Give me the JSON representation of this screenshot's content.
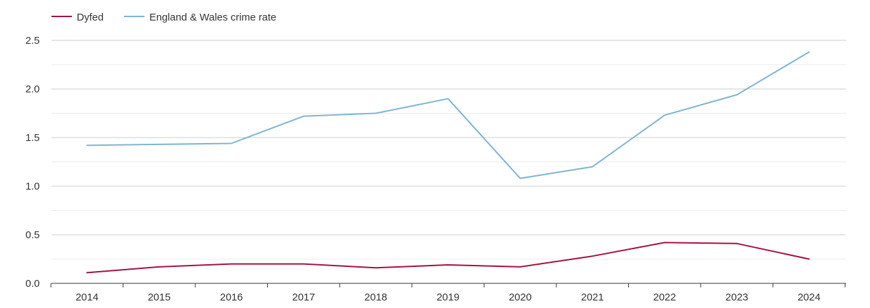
{
  "chart_data": {
    "type": "line",
    "title": "",
    "xlabel": "",
    "ylabel": "",
    "categories": [
      "2014",
      "2015",
      "2016",
      "2017",
      "2018",
      "2019",
      "2020",
      "2021",
      "2022",
      "2023",
      "2024"
    ],
    "ylim": [
      0,
      2.5
    ],
    "yticks": [
      "0.0",
      "0.5",
      "1.0",
      "1.5",
      "2.0",
      "2.5"
    ],
    "grid": true,
    "legend_position": "top-left",
    "series": [
      {
        "name": "Dyfed",
        "color": "#a50f3c",
        "values": [
          0.11,
          0.17,
          0.2,
          0.2,
          0.16,
          0.19,
          0.17,
          0.28,
          0.42,
          0.41,
          0.25
        ]
      },
      {
        "name": "England & Wales crime rate",
        "color": "#7eb3d4",
        "values": [
          1.42,
          1.43,
          1.44,
          1.72,
          1.75,
          1.9,
          1.08,
          1.2,
          1.73,
          1.94,
          2.38
        ]
      }
    ]
  }
}
